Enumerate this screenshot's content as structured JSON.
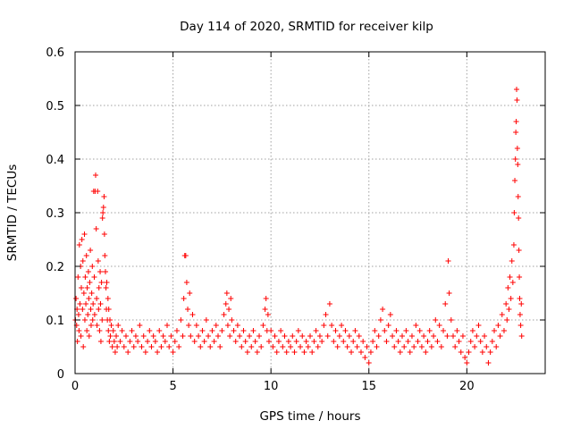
{
  "chart_data": {
    "type": "scatter",
    "title": "Day 114 of 2020, SRMTID for receiver kilp",
    "xlabel": "GPS time / hours",
    "ylabel": "SRMTID / TECUs",
    "xlim": [
      0,
      24
    ],
    "ylim": [
      0,
      0.6
    ],
    "x_ticks": [
      0,
      5,
      10,
      15,
      20
    ],
    "x_tick_labels": [
      "0",
      "5",
      "10",
      "15",
      "20"
    ],
    "y_ticks": [
      0,
      0.1,
      0.2,
      0.3,
      0.4,
      0.5,
      0.6
    ],
    "y_tick_labels": [
      "0",
      "0.1",
      "0.2",
      "0.3",
      "0.4",
      "0.5",
      "0.6"
    ],
    "grid": true,
    "marker": "+",
    "color": "#ff0000",
    "series": [
      {
        "name": "SRMTID",
        "points": [
          [
            0.02,
            0.1
          ],
          [
            0.05,
            0.14
          ],
          [
            0.08,
            0.09
          ],
          [
            0.1,
            0.12
          ],
          [
            0.12,
            0.06
          ],
          [
            0.15,
            0.18
          ],
          [
            0.18,
            0.11
          ],
          [
            0.2,
            0.08
          ],
          [
            0.22,
            0.24
          ],
          [
            0.25,
            0.13
          ],
          [
            0.28,
            0.2
          ],
          [
            0.3,
            0.07
          ],
          [
            0.32,
            0.16
          ],
          [
            0.35,
            0.25
          ],
          [
            0.38,
            0.12
          ],
          [
            0.4,
            0.21
          ],
          [
            0.42,
            0.05
          ],
          [
            0.45,
            0.15
          ],
          [
            0.48,
            0.26
          ],
          [
            0.5,
            0.1
          ],
          [
            0.52,
            0.18
          ],
          [
            0.55,
            0.13
          ],
          [
            0.58,
            0.22
          ],
          [
            0.6,
            0.08
          ],
          [
            0.62,
            0.16
          ],
          [
            0.65,
            0.11
          ],
          [
            0.68,
            0.19
          ],
          [
            0.7,
            0.14
          ],
          [
            0.72,
            0.07
          ],
          [
            0.75,
            0.17
          ],
          [
            0.78,
            0.23
          ],
          [
            0.8,
            0.12
          ],
          [
            0.82,
            0.09
          ],
          [
            0.85,
            0.15
          ],
          [
            0.88,
            0.2
          ],
          [
            0.9,
            0.1
          ],
          [
            0.92,
            0.13
          ],
          [
            0.95,
            0.34
          ],
          [
            0.98,
            0.18
          ],
          [
            1.0,
            0.11
          ],
          [
            1.02,
            0.34
          ],
          [
            1.05,
            0.37
          ],
          [
            1.08,
            0.27
          ],
          [
            1.1,
            0.14
          ],
          [
            1.12,
            0.09
          ],
          [
            1.15,
            0.34
          ],
          [
            1.18,
            0.21
          ],
          [
            1.2,
            0.12
          ],
          [
            1.22,
            0.16
          ],
          [
            1.25,
            0.08
          ],
          [
            1.28,
            0.19
          ],
          [
            1.3,
            0.13
          ],
          [
            1.32,
            0.06
          ],
          [
            1.35,
            0.17
          ],
          [
            1.38,
            0.1
          ],
          [
            1.4,
            0.29
          ],
          [
            1.42,
            0.3
          ],
          [
            1.45,
            0.31
          ],
          [
            1.48,
            0.33
          ],
          [
            1.5,
            0.26
          ],
          [
            1.52,
            0.22
          ],
          [
            1.55,
            0.19
          ],
          [
            1.58,
            0.16
          ],
          [
            1.6,
            0.12
          ],
          [
            1.62,
            0.17
          ],
          [
            1.65,
            0.1
          ],
          [
            1.68,
            0.14
          ],
          [
            1.7,
            0.08
          ],
          [
            1.72,
            0.12
          ],
          [
            1.75,
            0.06
          ],
          [
            1.78,
            0.1
          ],
          [
            1.8,
            0.07
          ],
          [
            1.85,
            0.09
          ],
          [
            1.9,
            0.05
          ],
          [
            1.95,
            0.08
          ],
          [
            2.0,
            0.06
          ],
          [
            2.05,
            0.04
          ],
          [
            2.1,
            0.07
          ],
          [
            2.15,
            0.05
          ],
          [
            2.2,
            0.09
          ],
          [
            2.3,
            0.06
          ],
          [
            2.4,
            0.08
          ],
          [
            2.5,
            0.05
          ],
          [
            2.6,
            0.07
          ],
          [
            2.7,
            0.04
          ],
          [
            2.8,
            0.06
          ],
          [
            2.9,
            0.08
          ],
          [
            3.0,
            0.05
          ],
          [
            3.1,
            0.07
          ],
          [
            3.2,
            0.06
          ],
          [
            3.3,
            0.09
          ],
          [
            3.4,
            0.05
          ],
          [
            3.5,
            0.07
          ],
          [
            3.6,
            0.04
          ],
          [
            3.7,
            0.06
          ],
          [
            3.8,
            0.08
          ],
          [
            3.9,
            0.05
          ],
          [
            4.0,
            0.07
          ],
          [
            4.1,
            0.06
          ],
          [
            4.2,
            0.04
          ],
          [
            4.3,
            0.08
          ],
          [
            4.4,
            0.05
          ],
          [
            4.5,
            0.07
          ],
          [
            4.6,
            0.06
          ],
          [
            4.7,
            0.09
          ],
          [
            4.8,
            0.05
          ],
          [
            4.9,
            0.07
          ],
          [
            5.0,
            0.04
          ],
          [
            5.1,
            0.06
          ],
          [
            5.2,
            0.08
          ],
          [
            5.3,
            0.05
          ],
          [
            5.4,
            0.1
          ],
          [
            5.5,
            0.07
          ],
          [
            5.55,
            0.14
          ],
          [
            5.6,
            0.22
          ],
          [
            5.65,
            0.22
          ],
          [
            5.7,
            0.17
          ],
          [
            5.75,
            0.12
          ],
          [
            5.8,
            0.09
          ],
          [
            5.85,
            0.15
          ],
          [
            5.9,
            0.07
          ],
          [
            6.0,
            0.11
          ],
          [
            6.1,
            0.06
          ],
          [
            6.2,
            0.09
          ],
          [
            6.3,
            0.07
          ],
          [
            6.4,
            0.05
          ],
          [
            6.5,
            0.08
          ],
          [
            6.6,
            0.06
          ],
          [
            6.7,
            0.1
          ],
          [
            6.8,
            0.07
          ],
          [
            6.9,
            0.05
          ],
          [
            7.0,
            0.08
          ],
          [
            7.1,
            0.06
          ],
          [
            7.2,
            0.09
          ],
          [
            7.3,
            0.07
          ],
          [
            7.4,
            0.05
          ],
          [
            7.5,
            0.08
          ],
          [
            7.6,
            0.11
          ],
          [
            7.7,
            0.13
          ],
          [
            7.75,
            0.15
          ],
          [
            7.8,
            0.09
          ],
          [
            7.85,
            0.12
          ],
          [
            7.9,
            0.07
          ],
          [
            7.95,
            0.14
          ],
          [
            8.0,
            0.1
          ],
          [
            8.1,
            0.08
          ],
          [
            8.2,
            0.06
          ],
          [
            8.3,
            0.09
          ],
          [
            8.4,
            0.07
          ],
          [
            8.5,
            0.05
          ],
          [
            8.6,
            0.08
          ],
          [
            8.7,
            0.06
          ],
          [
            8.8,
            0.04
          ],
          [
            8.9,
            0.07
          ],
          [
            9.0,
            0.05
          ],
          [
            9.1,
            0.08
          ],
          [
            9.2,
            0.06
          ],
          [
            9.3,
            0.04
          ],
          [
            9.4,
            0.07
          ],
          [
            9.5,
            0.05
          ],
          [
            9.6,
            0.09
          ],
          [
            9.7,
            0.12
          ],
          [
            9.75,
            0.14
          ],
          [
            9.8,
            0.08
          ],
          [
            9.85,
            0.11
          ],
          [
            9.9,
            0.06
          ],
          [
            10.0,
            0.08
          ],
          [
            10.1,
            0.05
          ],
          [
            10.2,
            0.07
          ],
          [
            10.3,
            0.04
          ],
          [
            10.4,
            0.06
          ],
          [
            10.5,
            0.08
          ],
          [
            10.6,
            0.05
          ],
          [
            10.7,
            0.07
          ],
          [
            10.8,
            0.04
          ],
          [
            10.9,
            0.06
          ],
          [
            11.0,
            0.05
          ],
          [
            11.1,
            0.07
          ],
          [
            11.2,
            0.04
          ],
          [
            11.3,
            0.06
          ],
          [
            11.4,
            0.08
          ],
          [
            11.5,
            0.05
          ],
          [
            11.6,
            0.07
          ],
          [
            11.7,
            0.04
          ],
          [
            11.8,
            0.06
          ],
          [
            11.9,
            0.05
          ],
          [
            12.0,
            0.07
          ],
          [
            12.1,
            0.04
          ],
          [
            12.2,
            0.06
          ],
          [
            12.3,
            0.08
          ],
          [
            12.4,
            0.05
          ],
          [
            12.5,
            0.07
          ],
          [
            12.6,
            0.06
          ],
          [
            12.7,
            0.09
          ],
          [
            12.8,
            0.11
          ],
          [
            12.9,
            0.07
          ],
          [
            13.0,
            0.13
          ],
          [
            13.1,
            0.09
          ],
          [
            13.2,
            0.06
          ],
          [
            13.3,
            0.08
          ],
          [
            13.4,
            0.05
          ],
          [
            13.5,
            0.07
          ],
          [
            13.6,
            0.09
          ],
          [
            13.7,
            0.06
          ],
          [
            13.8,
            0.08
          ],
          [
            13.9,
            0.05
          ],
          [
            14.0,
            0.07
          ],
          [
            14.1,
            0.04
          ],
          [
            14.2,
            0.06
          ],
          [
            14.3,
            0.08
          ],
          [
            14.4,
            0.05
          ],
          [
            14.5,
            0.07
          ],
          [
            14.6,
            0.04
          ],
          [
            14.7,
            0.06
          ],
          [
            14.8,
            0.03
          ],
          [
            14.9,
            0.05
          ],
          [
            15.0,
            0.02
          ],
          [
            15.1,
            0.04
          ],
          [
            15.2,
            0.06
          ],
          [
            15.3,
            0.08
          ],
          [
            15.4,
            0.05
          ],
          [
            15.5,
            0.07
          ],
          [
            15.6,
            0.1
          ],
          [
            15.7,
            0.12
          ],
          [
            15.8,
            0.08
          ],
          [
            15.9,
            0.06
          ],
          [
            16.0,
            0.09
          ],
          [
            16.1,
            0.11
          ],
          [
            16.2,
            0.07
          ],
          [
            16.3,
            0.05
          ],
          [
            16.4,
            0.08
          ],
          [
            16.5,
            0.06
          ],
          [
            16.6,
            0.04
          ],
          [
            16.7,
            0.07
          ],
          [
            16.8,
            0.05
          ],
          [
            16.9,
            0.08
          ],
          [
            17.0,
            0.06
          ],
          [
            17.1,
            0.04
          ],
          [
            17.2,
            0.07
          ],
          [
            17.3,
            0.05
          ],
          [
            17.4,
            0.09
          ],
          [
            17.5,
            0.06
          ],
          [
            17.6,
            0.08
          ],
          [
            17.7,
            0.05
          ],
          [
            17.8,
            0.07
          ],
          [
            17.9,
            0.04
          ],
          [
            18.0,
            0.06
          ],
          [
            18.1,
            0.08
          ],
          [
            18.2,
            0.05
          ],
          [
            18.3,
            0.07
          ],
          [
            18.4,
            0.1
          ],
          [
            18.5,
            0.06
          ],
          [
            18.6,
            0.09
          ],
          [
            18.7,
            0.05
          ],
          [
            18.8,
            0.08
          ],
          [
            18.9,
            0.13
          ],
          [
            19.0,
            0.07
          ],
          [
            19.05,
            0.21
          ],
          [
            19.1,
            0.15
          ],
          [
            19.2,
            0.1
          ],
          [
            19.3,
            0.07
          ],
          [
            19.4,
            0.05
          ],
          [
            19.5,
            0.08
          ],
          [
            19.6,
            0.06
          ],
          [
            19.7,
            0.04
          ],
          [
            19.8,
            0.07
          ],
          [
            19.9,
            0.03
          ],
          [
            20.0,
            0.02
          ],
          [
            20.1,
            0.04
          ],
          [
            20.2,
            0.06
          ],
          [
            20.3,
            0.08
          ],
          [
            20.4,
            0.05
          ],
          [
            20.5,
            0.07
          ],
          [
            20.6,
            0.09
          ],
          [
            20.7,
            0.06
          ],
          [
            20.8,
            0.04
          ],
          [
            20.9,
            0.07
          ],
          [
            21.0,
            0.05
          ],
          [
            21.1,
            0.02
          ],
          [
            21.2,
            0.04
          ],
          [
            21.3,
            0.06
          ],
          [
            21.4,
            0.08
          ],
          [
            21.5,
            0.05
          ],
          [
            21.6,
            0.09
          ],
          [
            21.7,
            0.07
          ],
          [
            21.8,
            0.11
          ],
          [
            21.9,
            0.08
          ],
          [
            22.0,
            0.13
          ],
          [
            22.05,
            0.1
          ],
          [
            22.1,
            0.16
          ],
          [
            22.15,
            0.12
          ],
          [
            22.2,
            0.18
          ],
          [
            22.25,
            0.14
          ],
          [
            22.3,
            0.21
          ],
          [
            22.35,
            0.17
          ],
          [
            22.4,
            0.24
          ],
          [
            22.42,
            0.3
          ],
          [
            22.45,
            0.36
          ],
          [
            22.48,
            0.4
          ],
          [
            22.5,
            0.45
          ],
          [
            22.52,
            0.47
          ],
          [
            22.54,
            0.53
          ],
          [
            22.56,
            0.51
          ],
          [
            22.58,
            0.42
          ],
          [
            22.6,
            0.39
          ],
          [
            22.62,
            0.33
          ],
          [
            22.64,
            0.29
          ],
          [
            22.66,
            0.23
          ],
          [
            22.68,
            0.18
          ],
          [
            22.7,
            0.14
          ],
          [
            22.72,
            0.11
          ],
          [
            22.75,
            0.09
          ],
          [
            22.78,
            0.13
          ],
          [
            22.8,
            0.07
          ]
        ]
      }
    ]
  }
}
